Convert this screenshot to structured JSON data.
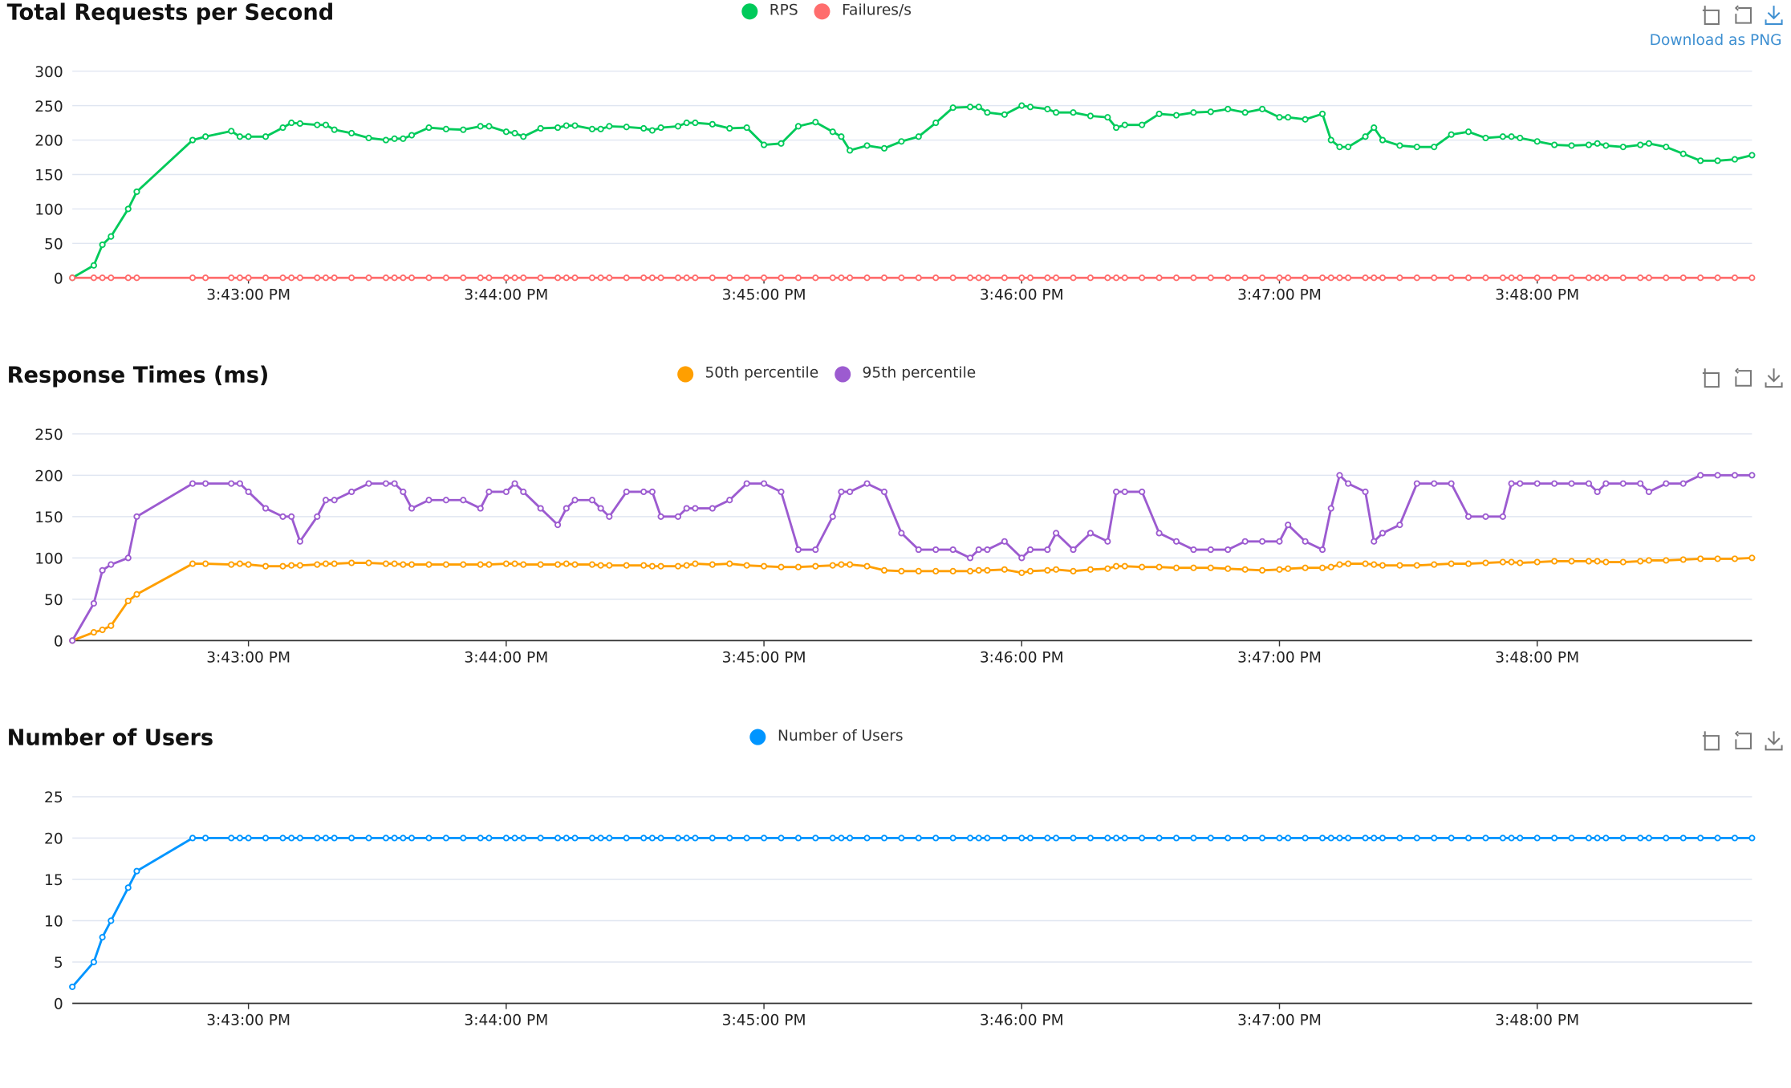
{
  "download_tooltip": "Download as PNG",
  "toolbar_icons": [
    "zoom-icon",
    "restore-icon",
    "download-icon"
  ],
  "timestamps": [
    "3:42:19",
    "3:42:24",
    "3:42:26",
    "3:42:28",
    "3:42:32",
    "3:42:34",
    "3:42:47",
    "3:42:50",
    "3:42:56",
    "3:42:58",
    "3:43:00",
    "3:43:04",
    "3:43:08",
    "3:43:10",
    "3:43:12",
    "3:43:16",
    "3:43:18",
    "3:43:20",
    "3:43:24",
    "3:43:28",
    "3:43:32",
    "3:43:34",
    "3:43:36",
    "3:43:38",
    "3:43:42",
    "3:43:46",
    "3:43:50",
    "3:43:54",
    "3:43:56",
    "3:44:00",
    "3:44:02",
    "3:44:04",
    "3:44:08",
    "3:44:12",
    "3:44:14",
    "3:44:16",
    "3:44:20",
    "3:44:22",
    "3:44:24",
    "3:44:28",
    "3:44:32",
    "3:44:34",
    "3:44:36",
    "3:44:40",
    "3:44:42",
    "3:44:44",
    "3:44:48",
    "3:44:52",
    "3:44:56",
    "3:45:00",
    "3:45:04",
    "3:45:08",
    "3:45:12",
    "3:45:16",
    "3:45:18",
    "3:45:20",
    "3:45:24",
    "3:45:28",
    "3:45:32",
    "3:45:36",
    "3:45:40",
    "3:45:44",
    "3:45:48",
    "3:45:50",
    "3:45:52",
    "3:45:56",
    "3:46:00",
    "3:46:02",
    "3:46:06",
    "3:46:08",
    "3:46:12",
    "3:46:16",
    "3:46:20",
    "3:46:22",
    "3:46:24",
    "3:46:28",
    "3:46:32",
    "3:46:36",
    "3:46:40",
    "3:46:44",
    "3:46:48",
    "3:46:52",
    "3:46:56",
    "3:47:00",
    "3:47:02",
    "3:47:06",
    "3:47:10",
    "3:47:12",
    "3:47:14",
    "3:47:16",
    "3:47:20",
    "3:47:22",
    "3:47:24",
    "3:47:28",
    "3:47:32",
    "3:47:36",
    "3:47:40",
    "3:47:44",
    "3:47:48",
    "3:47:52",
    "3:47:54",
    "3:47:56",
    "3:48:00",
    "3:48:04",
    "3:48:08",
    "3:48:12",
    "3:48:14",
    "3:48:16",
    "3:48:20",
    "3:48:24",
    "3:48:26",
    "3:48:30",
    "3:48:34",
    "3:48:38",
    "3:48:42",
    "3:48:46",
    "3:48:50"
  ],
  "chart_data": [
    {
      "type": "line",
      "title": "Total Requests per Second",
      "xlim": [
        "3:42:19",
        "3:48:50"
      ],
      "xticks": [
        "3:43:00 PM",
        "3:44:00 PM",
        "3:45:00 PM",
        "3:46:00 PM",
        "3:47:00 PM",
        "3:48:00 PM"
      ],
      "ylim": [
        0,
        300
      ],
      "yticks": [
        0,
        50,
        100,
        150,
        200,
        250,
        300
      ],
      "grid": true,
      "legend": "top-center",
      "series": [
        {
          "name": "RPS",
          "color": "#00ca5a",
          "values": [
            0,
            18,
            48,
            60,
            100,
            125,
            200,
            205,
            213,
            205,
            205,
            205,
            218,
            225,
            224,
            222,
            222,
            215,
            210,
            203,
            200,
            202,
            202,
            207,
            218,
            216,
            215,
            220,
            220,
            212,
            210,
            205,
            217,
            218,
            221,
            221,
            216,
            216,
            220,
            219,
            217,
            214,
            218,
            220,
            225,
            225,
            223,
            217,
            218,
            193,
            195,
            220,
            226,
            212,
            205,
            185,
            192,
            188,
            198,
            205,
            225,
            247,
            248,
            248,
            240,
            237,
            250,
            248,
            245,
            240,
            240,
            235,
            233,
            218,
            222,
            222,
            238,
            236,
            240,
            241,
            245,
            240,
            245,
            233,
            233,
            230,
            238,
            200,
            190,
            190,
            205,
            218,
            200,
            192,
            190,
            190,
            208,
            212,
            203,
            205,
            205,
            203,
            198,
            193,
            192,
            193,
            195,
            192,
            190,
            193,
            195,
            190,
            180,
            170,
            170,
            172,
            178
          ]
        },
        {
          "name": "Failures/s",
          "color": "#ff6d6d",
          "values": [
            0,
            0,
            0,
            0,
            0,
            0,
            0,
            0,
            0,
            0,
            0,
            0,
            0,
            0,
            0,
            0,
            0,
            0,
            0,
            0,
            0,
            0,
            0,
            0,
            0,
            0,
            0,
            0,
            0,
            0,
            0,
            0,
            0,
            0,
            0,
            0,
            0,
            0,
            0,
            0,
            0,
            0,
            0,
            0,
            0,
            0,
            0,
            0,
            0,
            0,
            0,
            0,
            0,
            0,
            0,
            0,
            0,
            0,
            0,
            0,
            0,
            0,
            0,
            0,
            0,
            0,
            0,
            0,
            0,
            0,
            0,
            0,
            0,
            0,
            0,
            0,
            0,
            0,
            0,
            0,
            0,
            0,
            0,
            0,
            0,
            0,
            0,
            0,
            0,
            0,
            0,
            0,
            0,
            0,
            0,
            0,
            0,
            0,
            0,
            0,
            0,
            0,
            0,
            0,
            0,
            0,
            0,
            0,
            0,
            0,
            0,
            0,
            0,
            0,
            0,
            0,
            0
          ]
        }
      ]
    },
    {
      "type": "line",
      "title": "Response Times (ms)",
      "xlim": [
        "3:42:19",
        "3:48:50"
      ],
      "xticks": [
        "3:43:00 PM",
        "3:44:00 PM",
        "3:45:00 PM",
        "3:46:00 PM",
        "3:47:00 PM",
        "3:48:00 PM"
      ],
      "ylim": [
        0,
        250
      ],
      "yticks": [
        0,
        50,
        100,
        150,
        200,
        250
      ],
      "grid": true,
      "legend": "top-center",
      "series": [
        {
          "name": "50th percentile",
          "color": "#ff9f00",
          "values": [
            0,
            10,
            13,
            18,
            48,
            56,
            93,
            93,
            92,
            93,
            92,
            90,
            90,
            91,
            91,
            92,
            93,
            93,
            94,
            94,
            93,
            93,
            92,
            92,
            92,
            92,
            92,
            92,
            92,
            93,
            93,
            92,
            92,
            92,
            93,
            92,
            92,
            91,
            91,
            91,
            91,
            90,
            90,
            90,
            91,
            93,
            92,
            93,
            91,
            90,
            89,
            89,
            90,
            91,
            92,
            92,
            90,
            85,
            84,
            84,
            84,
            84,
            84,
            85,
            85,
            86,
            82,
            84,
            85,
            86,
            84,
            86,
            87,
            90,
            90,
            89,
            89,
            88,
            88,
            88,
            87,
            86,
            85,
            86,
            87,
            88,
            88,
            89,
            92,
            93,
            93,
            92,
            91,
            91,
            91,
            92,
            93,
            93,
            94,
            95,
            95,
            94,
            95,
            96,
            96,
            96,
            96,
            95,
            95,
            96,
            97,
            97,
            98,
            99,
            99,
            99,
            100
          ]
        },
        {
          "name": "95th percentile",
          "color": "#9c5bd0",
          "values": [
            0,
            45,
            85,
            92,
            100,
            150,
            190,
            190,
            190,
            190,
            180,
            160,
            150,
            150,
            120,
            150,
            170,
            170,
            180,
            190,
            190,
            190,
            180,
            160,
            170,
            170,
            170,
            160,
            180,
            180,
            190,
            180,
            160,
            140,
            160,
            170,
            170,
            160,
            150,
            180,
            180,
            180,
            150,
            150,
            160,
            160,
            160,
            170,
            190,
            190,
            180,
            110,
            110,
            150,
            180,
            180,
            190,
            180,
            130,
            110,
            110,
            110,
            100,
            110,
            110,
            120,
            100,
            110,
            110,
            130,
            110,
            130,
            120,
            180,
            180,
            180,
            130,
            120,
            110,
            110,
            110,
            120,
            120,
            120,
            140,
            120,
            110,
            160,
            200,
            190,
            180,
            120,
            130,
            140,
            190,
            190,
            190,
            150,
            150,
            150,
            190,
            190,
            190,
            190,
            190,
            190,
            180,
            190,
            190,
            190,
            180,
            190,
            190,
            200,
            200,
            200,
            200
          ]
        }
      ]
    },
    {
      "type": "line",
      "title": "Number of Users",
      "xlim": [
        "3:42:19",
        "3:48:50"
      ],
      "xticks": [
        "3:43:00 PM",
        "3:44:00 PM",
        "3:45:00 PM",
        "3:46:00 PM",
        "3:47:00 PM",
        "3:48:00 PM"
      ],
      "ylim": [
        0,
        25
      ],
      "yticks": [
        0,
        5,
        10,
        15,
        20,
        25
      ],
      "grid": true,
      "legend": "top-center",
      "series": [
        {
          "name": "Number of Users",
          "color": "#0095ff",
          "values": [
            2,
            5,
            8,
            10,
            14,
            16,
            20,
            20,
            20,
            20,
            20,
            20,
            20,
            20,
            20,
            20,
            20,
            20,
            20,
            20,
            20,
            20,
            20,
            20,
            20,
            20,
            20,
            20,
            20,
            20,
            20,
            20,
            20,
            20,
            20,
            20,
            20,
            20,
            20,
            20,
            20,
            20,
            20,
            20,
            20,
            20,
            20,
            20,
            20,
            20,
            20,
            20,
            20,
            20,
            20,
            20,
            20,
            20,
            20,
            20,
            20,
            20,
            20,
            20,
            20,
            20,
            20,
            20,
            20,
            20,
            20,
            20,
            20,
            20,
            20,
            20,
            20,
            20,
            20,
            20,
            20,
            20,
            20,
            20,
            20,
            20,
            20,
            20,
            20,
            20,
            20,
            20,
            20,
            20,
            20,
            20,
            20,
            20,
            20,
            20,
            20,
            20,
            20,
            20,
            20,
            20,
            20,
            20,
            20,
            20,
            20,
            20,
            20,
            20,
            20,
            20,
            20
          ]
        }
      ]
    }
  ]
}
